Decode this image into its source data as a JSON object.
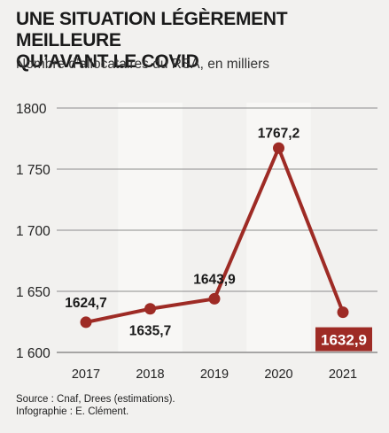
{
  "header": {
    "title_line1": "UNE SITUATION LÉGÈREMENT MEILLEURE",
    "title_line2": "QU’AVANT LE COVID",
    "subtitle": "Nombre d’allocataires du RSA, en milliers"
  },
  "footer": {
    "source": "Source : Cnaf, Drees (estimations).",
    "credit": "Infographie : E. Clément."
  },
  "colors": {
    "series": "#9e2b25",
    "highlight_label_bg": "#9e2b25",
    "grid": "#8c8c8c",
    "background": "#f2f1ef",
    "band": "#f8f7f5"
  },
  "chart_data": {
    "type": "line",
    "title": "UNE SITUATION LÉGÈREMENT MEILLEURE QU’AVANT LE COVID",
    "subtitle": "Nombre d’allocataires du RSA, en milliers",
    "xlabel": "",
    "ylabel": "",
    "categories": [
      "2017",
      "2018",
      "2019",
      "2020",
      "2021"
    ],
    "series": [
      {
        "values": [
          1624.7,
          1635.7,
          1643.9,
          1767.2,
          1632.9
        ],
        "labels": [
          "1624,7",
          "1635,7",
          "1643,9",
          "1767,2",
          "1632,9"
        ]
      }
    ],
    "highlighted_point_index": 4,
    "ylim": [
      1600,
      1800
    ],
    "yticks": [
      1600,
      1650,
      1700,
      1750,
      1800
    ],
    "ytick_labels": [
      "1 600",
      "1 650",
      "1 700",
      "1 750",
      "1800"
    ],
    "grid": true,
    "legend": "none"
  }
}
